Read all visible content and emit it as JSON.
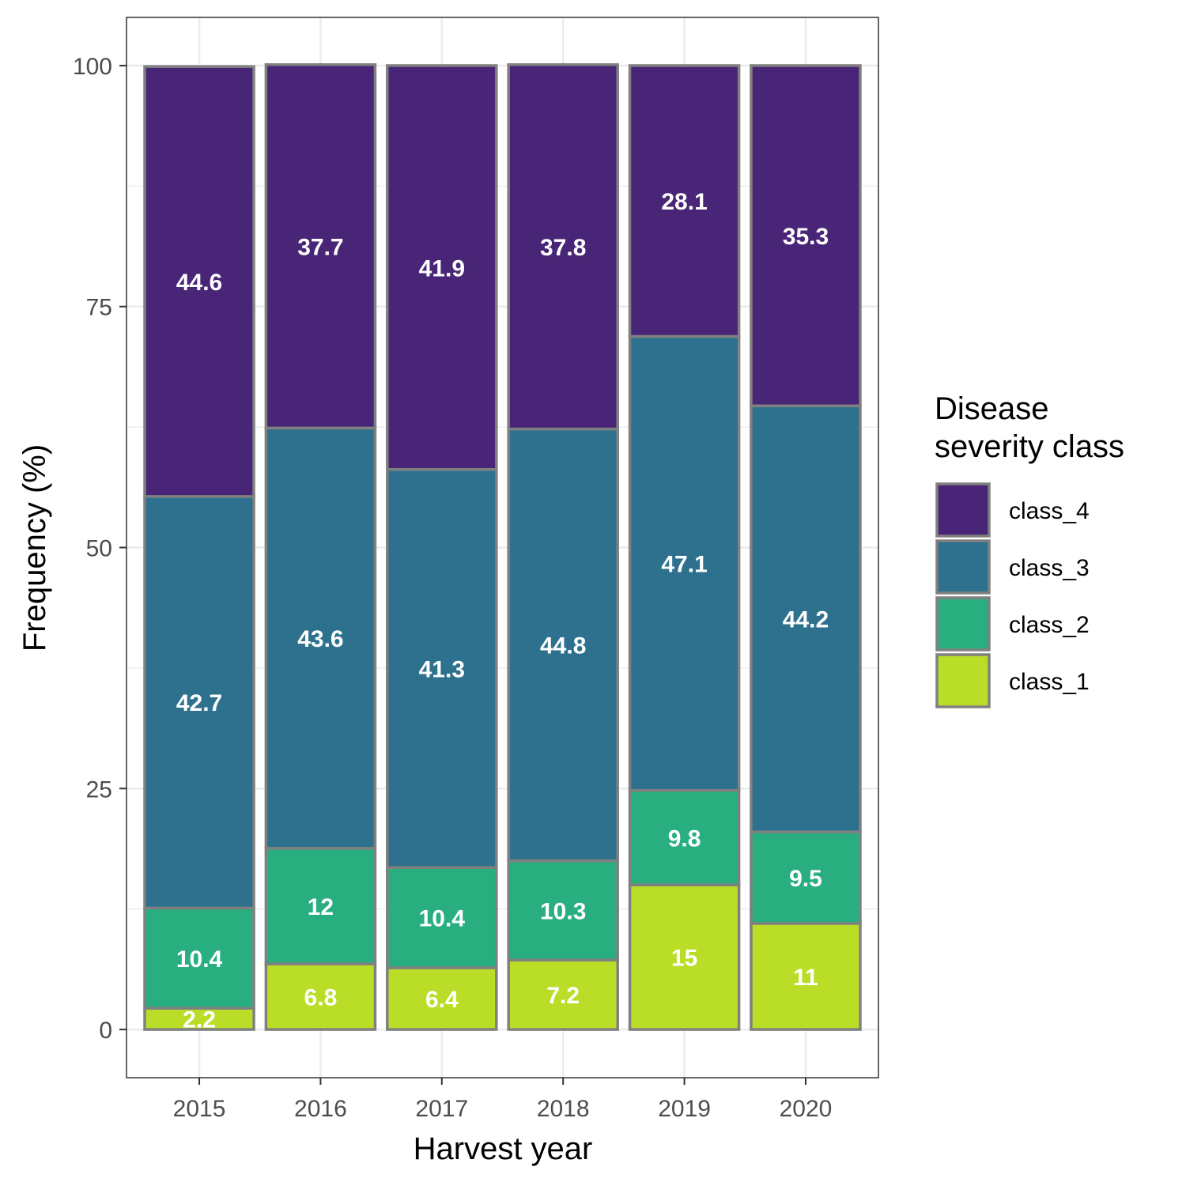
{
  "chart_data": {
    "type": "bar",
    "stacked": true,
    "xlabel": "Harvest year",
    "ylabel": "Frequency (%)",
    "categories": [
      "2015",
      "2016",
      "2017",
      "2018",
      "2019",
      "2020"
    ],
    "series": [
      {
        "name": "class_1",
        "color": "#BADE28",
        "values": [
          2.2,
          6.8,
          6.4,
          7.2,
          15,
          11
        ]
      },
      {
        "name": "class_2",
        "color": "#29AF7F",
        "values": [
          10.4,
          12,
          10.4,
          10.3,
          9.8,
          9.5
        ]
      },
      {
        "name": "class_3",
        "color": "#2E718E",
        "values": [
          42.7,
          43.6,
          41.3,
          44.8,
          47.1,
          44.2
        ]
      },
      {
        "name": "class_4",
        "color": "#482576",
        "values": [
          44.6,
          37.7,
          41.9,
          37.8,
          28.1,
          35.3
        ]
      }
    ],
    "yticks": [
      0,
      25,
      50,
      75,
      100
    ],
    "ylim": [
      -5,
      105
    ],
    "grid": true,
    "bar_border_color": "#808080",
    "legend": {
      "title_lines": [
        "Disease",
        "severity class"
      ],
      "position": "right",
      "order": [
        "class_4",
        "class_3",
        "class_2",
        "class_1"
      ]
    }
  }
}
